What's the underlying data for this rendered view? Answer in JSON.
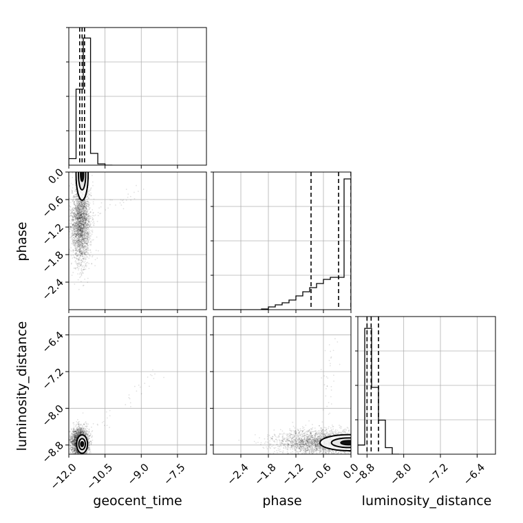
{
  "chart_data": {
    "type": "corner",
    "parameters": [
      "geocent_time",
      "phase",
      "luminosity_distance"
    ],
    "axes": {
      "geocent_time": {
        "lim": [
          -12.0,
          -6.3
        ],
        "ticks": [
          -12.0,
          -10.5,
          -9.0,
          -7.5
        ],
        "tick_labels": [
          "−12.0",
          "−10.5",
          "−9.0",
          "−7.5"
        ]
      },
      "phase": {
        "lim": [
          -3.0,
          0.0
        ],
        "ticks": [
          -2.4,
          -1.8,
          -1.2,
          -0.6,
          0.0
        ],
        "tick_labels": [
          "−2.4",
          "−1.8",
          "−1.2",
          "−0.6",
          "0.0"
        ]
      },
      "luminosity_distance": {
        "lim": [
          -9.0,
          -6.0
        ],
        "ticks": [
          -8.8,
          -8.0,
          -7.2,
          -6.4
        ],
        "tick_labels": [
          "−8.8",
          "−8.0",
          "−7.2",
          "−6.4"
        ]
      }
    },
    "marginals": {
      "geocent_time": {
        "bins": [
          -12.0,
          -11.7,
          -11.4,
          -11.1,
          -10.8,
          -10.5,
          -10.2
        ],
        "counts": [
          0.05,
          0.58,
          0.97,
          0.09,
          0.01,
          0.0
        ],
        "quantiles": [
          -11.55,
          -11.45,
          -11.35
        ],
        "ylim": [
          0,
          1.05
        ]
      },
      "phase": {
        "bins": [
          -3.0,
          -2.85,
          -2.7,
          -2.55,
          -2.4,
          -2.25,
          -2.1,
          -1.95,
          -1.8,
          -1.65,
          -1.5,
          -1.35,
          -1.2,
          -1.05,
          -0.9,
          -0.75,
          -0.6,
          -0.45,
          -0.3,
          -0.15,
          0.0
        ],
        "counts": [
          0,
          0,
          0,
          0,
          0,
          0,
          0,
          0.005,
          0.02,
          0.035,
          0.05,
          0.07,
          0.1,
          0.13,
          0.16,
          0.19,
          0.22,
          0.235,
          0.235,
          0.95
        ],
        "quantiles": [
          -0.87,
          -0.27,
          0.0
        ],
        "ylim": [
          0,
          1.0
        ]
      },
      "luminosity_distance": {
        "bins": [
          -9.0,
          -8.85,
          -8.7,
          -8.55,
          -8.4,
          -8.25,
          -8.1
        ],
        "counts": [
          0.07,
          0.96,
          0.51,
          0.26,
          0.05,
          0.0
        ],
        "quantiles": [
          -8.8,
          -8.71,
          -8.55
        ],
        "ylim": [
          0,
          1.05
        ]
      }
    },
    "joint": [
      {
        "x": "geocent_time",
        "y": "phase",
        "center": [
          -11.5,
          -1.1
        ],
        "spread": [
          0.2,
          0.45
        ],
        "peak": [
          -11.45,
          -0.05
        ],
        "tail": [
          -9.0,
          -0.4
        ]
      },
      {
        "x": "geocent_time",
        "y": "luminosity_distance",
        "center": [
          -11.55,
          -8.75
        ],
        "spread": [
          0.18,
          0.16
        ],
        "peak": [
          -11.45,
          -8.78
        ],
        "tail": [
          -8.2,
          -7.2
        ]
      },
      {
        "x": "phase",
        "y": "luminosity_distance",
        "center": [
          -0.6,
          -8.75
        ],
        "spread": [
          0.5,
          0.14
        ],
        "peak": [
          -0.05,
          -8.75
        ],
        "tail": [
          -0.4,
          -6.5
        ]
      }
    ],
    "grid": true
  }
}
